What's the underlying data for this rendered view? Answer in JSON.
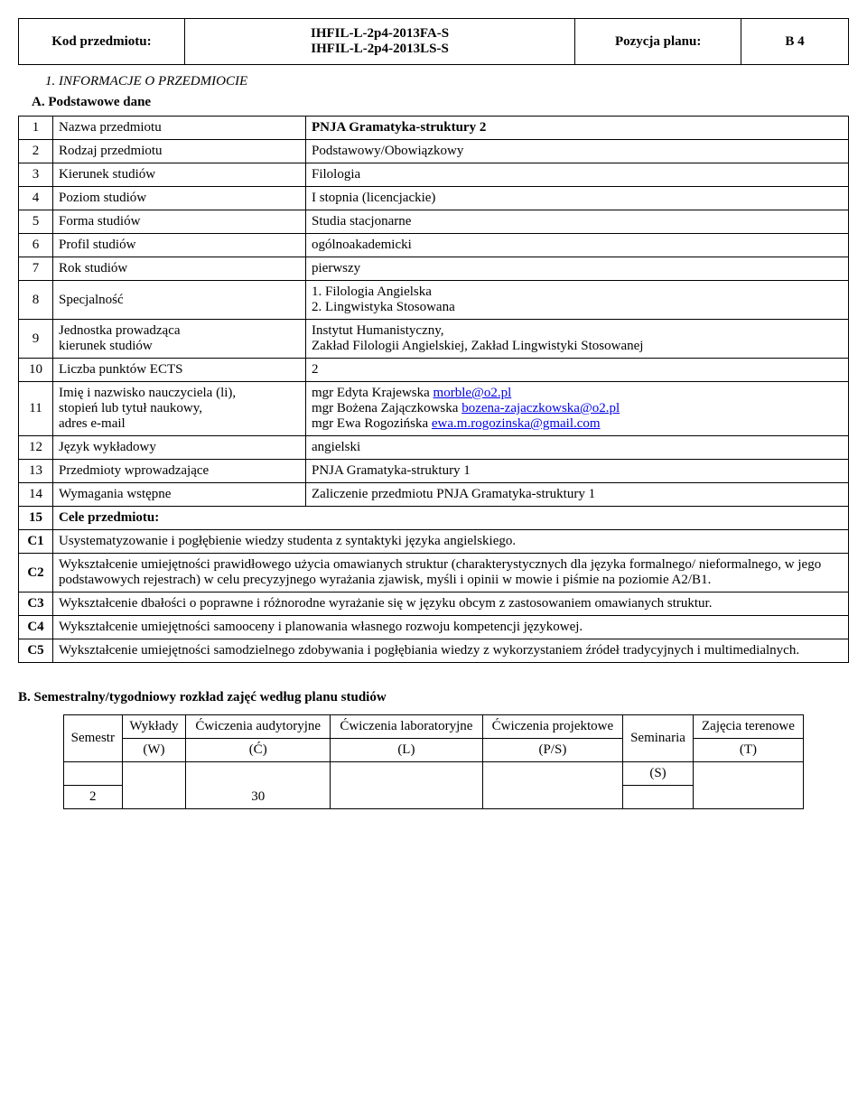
{
  "header": {
    "kod_label": "Kod przedmiotu:",
    "code_line1": "IHFIL-L-2p4-2013FA-S",
    "code_line2": "IHFIL-L-2p4-2013LS-S",
    "pozycja_label": "Pozycja planu:",
    "b4": "B 4"
  },
  "section1_title": "1. INFORMACJE O PRZEDMIOCIE",
  "sectionA_title": "A. Podstawowe dane",
  "rows": {
    "r1": {
      "n": "1",
      "label": "Nazwa przedmiotu",
      "value": "PNJA Gramatyka-struktury 2"
    },
    "r2": {
      "n": "2",
      "label": "Rodzaj przedmiotu",
      "value": "Podstawowy/Obowiązkowy"
    },
    "r3": {
      "n": "3",
      "label": "Kierunek studiów",
      "value": "Filologia"
    },
    "r4": {
      "n": "4",
      "label": "Poziom studiów",
      "value": "I stopnia (licencjackie)"
    },
    "r5": {
      "n": "5",
      "label": "Forma studiów",
      "value": "Studia stacjonarne"
    },
    "r6": {
      "n": "6",
      "label": "Profil studiów",
      "value": "ogólnoakademicki"
    },
    "r7": {
      "n": "7",
      "label": "Rok studiów",
      "value": "pierwszy"
    },
    "r8": {
      "n": "8",
      "label": "Specjalność",
      "value_l1": "1. Filologia Angielska",
      "value_l2": "2. Lingwistyka Stosowana"
    },
    "r9": {
      "n": "9",
      "label_l1": "Jednostka prowadząca",
      "label_l2": "kierunek studiów",
      "value_l1": "Instytut Humanistyczny,",
      "value_l2": "Zakład Filologii Angielskiej, Zakład Lingwistyki Stosowanej"
    },
    "r10": {
      "n": "10",
      "label": "Liczba punktów ECTS",
      "value": "2"
    },
    "r11": {
      "n": "11",
      "label_l1": "Imię i nazwisko nauczyciela (li),",
      "label_l2": "stopień lub tytuł naukowy,",
      "label_l3": "adres e-mail",
      "v1a": "mgr Edyta Krajewska ",
      "v1b": "morble@o2.pl",
      "v2a": "mgr Bożena Zajączkowska ",
      "v2b": "bozena-zajaczkowska@o2.pl",
      "v3a": "mgr Ewa Rogozińska ",
      "v3b": "ewa.m.rogozinska@gmail.com"
    },
    "r12": {
      "n": "12",
      "label": "Język wykładowy",
      "value": "angielski"
    },
    "r13": {
      "n": "13",
      "label": "Przedmioty wprowadzające",
      "value": "PNJA Gramatyka-struktury 1"
    },
    "r14": {
      "n": "14",
      "label": "Wymagania wstępne",
      "value": "Zaliczenie przedmiotu PNJA Gramatyka-struktury 1"
    },
    "r15": {
      "n": "15",
      "label": "Cele przedmiotu:"
    },
    "c1": {
      "n": "C1",
      "value": "Usystematyzowanie i pogłębienie wiedzy studenta z syntaktyki języka angielskiego."
    },
    "c2": {
      "n": "C2",
      "value": "Wykształcenie umiejętności prawidłowego użycia omawianych struktur (charakterystycznych dla języka formalnego/ nieformalnego, w jego podstawowych rejestrach) w celu precyzyjnego wyrażania zjawisk, myśli i opinii w mowie i piśmie na poziomie A2/B1."
    },
    "c3": {
      "n": "C3",
      "value": "Wykształcenie dbałości o poprawne i różnorodne wyrażanie się w języku obcym z zastosowaniem omawianych struktur."
    },
    "c4": {
      "n": "C4",
      "value": "Wykształcenie umiejętności samooceny i planowania własnego rozwoju kompetencji językowej."
    },
    "c5": {
      "n": "C5",
      "value": "Wykształcenie umiejętności samodzielnego zdobywania  i pogłębiania wiedzy z wykorzystaniem źródeł tradycyjnych  i multimedialnych."
    }
  },
  "sectionB_title": "B. Semestralny/tygodniowy rozkład zajęć według planu studiów",
  "schedule": {
    "h_semestr": "Semestr",
    "h_wyklady": "Wykłady",
    "h_cw_aud": "Ćwiczenia audytoryjne",
    "h_cw_lab": "Ćwiczenia laboratoryjne",
    "h_cw_proj": "Ćwiczenia projektowe",
    "h_sem": "Seminaria",
    "h_zaj": "Zajęcia terenowe",
    "k_w": "(W)",
    "k_c": "(Ć)",
    "k_l": "(L)",
    "k_ps": "(P/S)",
    "k_s": "(S)",
    "k_t": "(T)",
    "row_sem": "2",
    "row_c": "30"
  }
}
